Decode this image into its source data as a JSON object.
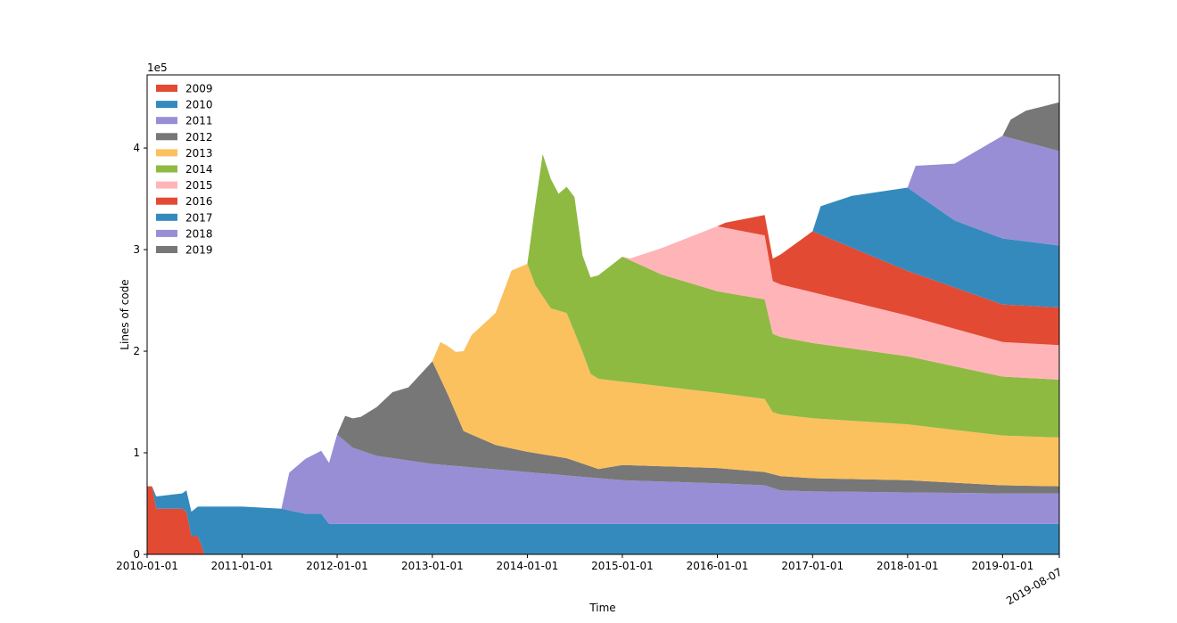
{
  "chart_data": {
    "type": "area",
    "stacked": true,
    "xlabel": "Time",
    "ylabel": "Lines of code",
    "y_offset_text": "1e5",
    "x_scale": "date",
    "xlim": [
      "2010-01-01",
      "2019-08-07"
    ],
    "ylim": [
      0,
      472000
    ],
    "x_ticks": [
      "2010-01-01",
      "2011-01-01",
      "2012-01-01",
      "2013-01-01",
      "2014-01-01",
      "2015-01-01",
      "2016-01-01",
      "2017-01-01",
      "2018-01-01",
      "2019-01-01",
      "2019-08-07"
    ],
    "y_ticks": [
      0,
      100000,
      200000,
      300000,
      400000
    ],
    "y_tick_labels": [
      "0",
      "1",
      "2",
      "3",
      "4"
    ],
    "legend_position": "top-left",
    "grid": false,
    "series": [
      {
        "name": "2009",
        "color": "#E24A33",
        "points": [
          [
            "2010-01-01",
            67000
          ],
          [
            "2010-01-20",
            67000
          ],
          [
            "2010-02-05",
            45000
          ],
          [
            "2010-05-15",
            45000
          ],
          [
            "2010-06-01",
            42000
          ],
          [
            "2010-06-20",
            18000
          ],
          [
            "2010-07-15",
            18000
          ],
          [
            "2010-08-10",
            0
          ],
          [
            "2019-08-07",
            0
          ]
        ]
      },
      {
        "name": "2010",
        "color": "#348ABD",
        "points": [
          [
            "2010-01-01",
            0
          ],
          [
            "2010-01-20",
            0
          ],
          [
            "2010-02-05",
            12000
          ],
          [
            "2010-05-15",
            15000
          ],
          [
            "2010-06-01",
            21000
          ],
          [
            "2010-06-20",
            24000
          ],
          [
            "2010-07-15",
            29000
          ],
          [
            "2010-08-10",
            47000
          ],
          [
            "2011-01-01",
            47000
          ],
          [
            "2011-06-01",
            45000
          ],
          [
            "2011-09-01",
            40000
          ],
          [
            "2011-11-01",
            40000
          ],
          [
            "2011-12-01",
            30000
          ],
          [
            "2019-08-07",
            30000
          ]
        ]
      },
      {
        "name": "2011",
        "color": "#988ED5",
        "points": [
          [
            "2010-01-01",
            0
          ],
          [
            "2011-06-01",
            0
          ],
          [
            "2011-07-01",
            37000
          ],
          [
            "2011-09-01",
            54000
          ],
          [
            "2011-11-01",
            62000
          ],
          [
            "2011-12-01",
            60000
          ],
          [
            "2012-01-01",
            88000
          ],
          [
            "2012-03-01",
            75000
          ],
          [
            "2012-06-01",
            67000
          ],
          [
            "2013-01-01",
            59000
          ],
          [
            "2014-01-01",
            51000
          ],
          [
            "2015-01-01",
            43000
          ],
          [
            "2016-01-01",
            40000
          ],
          [
            "2016-07-01",
            38000
          ],
          [
            "2016-09-01",
            33000
          ],
          [
            "2017-01-01",
            32000
          ],
          [
            "2018-01-01",
            31000
          ],
          [
            "2019-01-01",
            30000
          ],
          [
            "2019-08-07",
            30000
          ]
        ]
      },
      {
        "name": "2012",
        "color": "#777777",
        "points": [
          [
            "2010-01-01",
            0
          ],
          [
            "2012-01-01",
            0
          ],
          [
            "2012-02-01",
            25000
          ],
          [
            "2012-04-01",
            33000
          ],
          [
            "2012-06-01",
            48000
          ],
          [
            "2012-08-01",
            65000
          ],
          [
            "2012-10-01",
            72000
          ],
          [
            "2013-01-01",
            101000
          ],
          [
            "2013-03-01",
            70000
          ],
          [
            "2013-05-01",
            35000
          ],
          [
            "2013-09-01",
            24000
          ],
          [
            "2014-01-01",
            20000
          ],
          [
            "2014-06-01",
            17000
          ],
          [
            "2014-08-01",
            13000
          ],
          [
            "2014-10-01",
            9000
          ],
          [
            "2015-01-01",
            15000
          ],
          [
            "2016-01-01",
            15000
          ],
          [
            "2016-07-01",
            13000
          ],
          [
            "2016-09-01",
            14000
          ],
          [
            "2017-01-01",
            13000
          ],
          [
            "2018-01-01",
            12000
          ],
          [
            "2019-01-01",
            8000
          ],
          [
            "2019-08-07",
            7000
          ]
        ]
      },
      {
        "name": "2013",
        "color": "#FBC15E",
        "points": [
          [
            "2010-01-01",
            0
          ],
          [
            "2012-12-15",
            0
          ],
          [
            "2013-01-01",
            0
          ],
          [
            "2013-02-01",
            36000
          ],
          [
            "2013-04-01",
            60000
          ],
          [
            "2013-06-01",
            98000
          ],
          [
            "2013-09-01",
            130000
          ],
          [
            "2013-11-01",
            175000
          ],
          [
            "2014-01-01",
            185000
          ],
          [
            "2014-02-01",
            165000
          ],
          [
            "2014-04-01",
            145000
          ],
          [
            "2014-06-01",
            143000
          ],
          [
            "2014-08-01",
            110000
          ],
          [
            "2014-09-01",
            91000
          ],
          [
            "2015-01-01",
            82000
          ],
          [
            "2016-01-01",
            74000
          ],
          [
            "2016-07-01",
            72000
          ],
          [
            "2016-08-01",
            61000
          ],
          [
            "2017-01-01",
            59000
          ],
          [
            "2018-01-01",
            55000
          ],
          [
            "2019-01-01",
            49000
          ],
          [
            "2019-08-07",
            48000
          ]
        ]
      },
      {
        "name": "2014",
        "color": "#8EBA42",
        "points": [
          [
            "2010-01-01",
            0
          ],
          [
            "2014-01-01",
            0
          ],
          [
            "2014-02-01",
            80000
          ],
          [
            "2014-03-01",
            140000
          ],
          [
            "2014-05-01",
            115000
          ],
          [
            "2014-07-01",
            133000
          ],
          [
            "2014-08-01",
            95000
          ],
          [
            "2014-09-01",
            95000
          ],
          [
            "2015-01-01",
            123000
          ],
          [
            "2015-06-01",
            110000
          ],
          [
            "2016-01-01",
            100000
          ],
          [
            "2016-07-01",
            98000
          ],
          [
            "2016-08-01",
            77000
          ],
          [
            "2017-01-01",
            74000
          ],
          [
            "2018-01-01",
            67000
          ],
          [
            "2019-01-01",
            58000
          ],
          [
            "2019-08-07",
            57000
          ]
        ]
      },
      {
        "name": "2015",
        "color": "#FFB5B8",
        "points": [
          [
            "2010-01-01",
            0
          ],
          [
            "2015-01-01",
            0
          ],
          [
            "2015-02-01",
            2000
          ],
          [
            "2015-06-01",
            26000
          ],
          [
            "2016-01-01",
            64000
          ],
          [
            "2016-07-01",
            63000
          ],
          [
            "2016-08-01",
            52000
          ],
          [
            "2017-01-01",
            50000
          ],
          [
            "2018-01-01",
            40000
          ],
          [
            "2019-01-01",
            34000
          ],
          [
            "2019-08-07",
            34000
          ]
        ]
      },
      {
        "name": "2016",
        "color": "#E24A33",
        "points": [
          [
            "2010-01-01",
            0
          ],
          [
            "2016-01-01",
            0
          ],
          [
            "2016-02-01",
            5000
          ],
          [
            "2016-07-01",
            20000
          ],
          [
            "2016-08-01",
            22000
          ],
          [
            "2017-01-01",
            60000
          ],
          [
            "2018-01-01",
            44000
          ],
          [
            "2019-01-01",
            37000
          ],
          [
            "2019-08-07",
            37000
          ]
        ]
      },
      {
        "name": "2017",
        "color": "#348ABD",
        "points": [
          [
            "2010-01-01",
            0
          ],
          [
            "2017-01-01",
            0
          ],
          [
            "2017-02-01",
            28000
          ],
          [
            "2017-06-01",
            51000
          ],
          [
            "2018-01-01",
            82000
          ],
          [
            "2018-07-01",
            66000
          ],
          [
            "2019-01-01",
            65000
          ],
          [
            "2019-08-07",
            61000
          ]
        ]
      },
      {
        "name": "2018",
        "color": "#988ED5",
        "points": [
          [
            "2010-01-01",
            0
          ],
          [
            "2018-01-01",
            0
          ],
          [
            "2018-02-01",
            27000
          ],
          [
            "2018-07-01",
            56000
          ],
          [
            "2019-01-01",
            101000
          ],
          [
            "2019-08-07",
            93000
          ]
        ]
      },
      {
        "name": "2019",
        "color": "#777777",
        "points": [
          [
            "2010-01-01",
            0
          ],
          [
            "2019-01-01",
            0
          ],
          [
            "2019-02-01",
            18000
          ],
          [
            "2019-04-01",
            31000
          ],
          [
            "2019-06-01",
            39000
          ],
          [
            "2019-08-07",
            48000
          ]
        ]
      }
    ]
  }
}
